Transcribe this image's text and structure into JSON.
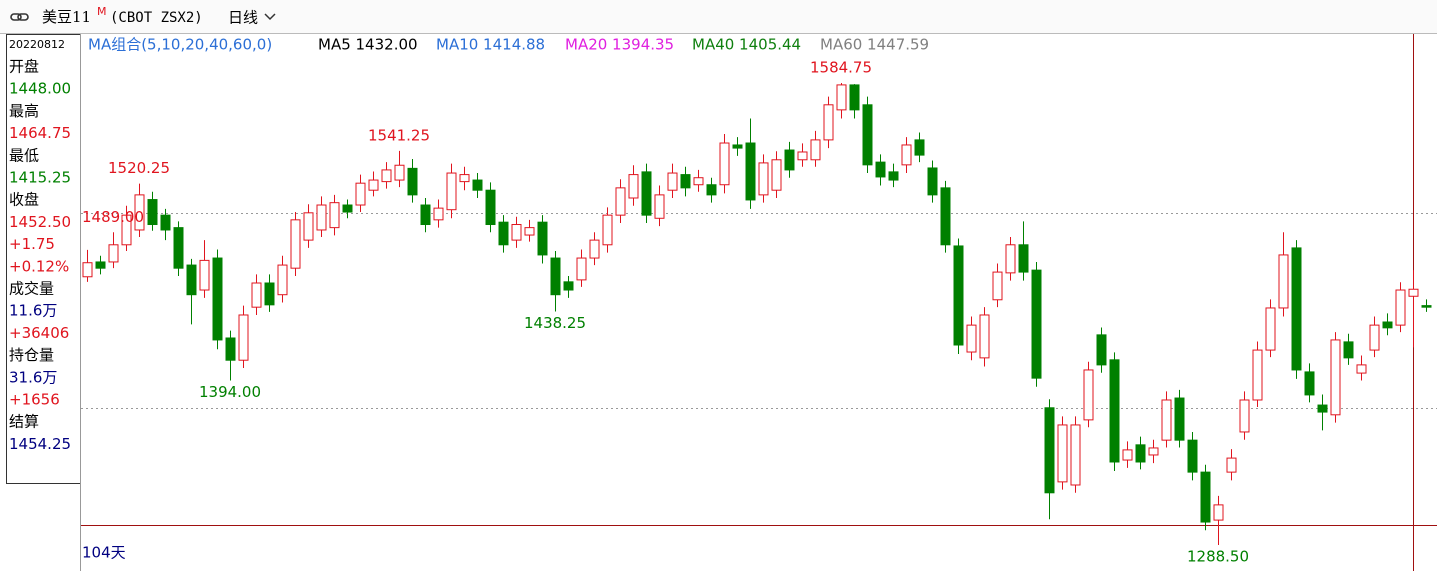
{
  "header": {
    "symbol": "美豆11",
    "flag": "M",
    "code": "(CBOT ZSX2)",
    "period": "日线"
  },
  "info_panel": [
    {
      "text": "20220812",
      "color": "#000000"
    },
    {
      "text": "开盘",
      "color": "#000000"
    },
    {
      "text": "1448.00",
      "color": "#008000"
    },
    {
      "text": "最高",
      "color": "#000000"
    },
    {
      "text": "1464.75",
      "color": "#e0141e"
    },
    {
      "text": "最低",
      "color": "#000000"
    },
    {
      "text": "1415.25",
      "color": "#008000"
    },
    {
      "text": "收盘",
      "color": "#000000"
    },
    {
      "text": "1452.50",
      "color": "#e0141e"
    },
    {
      "text": "+1.75",
      "color": "#e0141e"
    },
    {
      "text": "+0.12%",
      "color": "#e0141e"
    },
    {
      "text": "成交量",
      "color": "#000000"
    },
    {
      "text": "11.6万",
      "color": "#000080"
    },
    {
      "text": "+36406",
      "color": "#e0141e"
    },
    {
      "text": "持仓量",
      "color": "#000000"
    },
    {
      "text": "31.6万",
      "color": "#000080"
    },
    {
      "text": "+1656",
      "color": "#e0141e"
    },
    {
      "text": "结算",
      "color": "#000000"
    },
    {
      "text": "1454.25",
      "color": "#000080"
    }
  ],
  "chart_data": {
    "type": "candlestick",
    "ma_legend": [
      {
        "text": "MA组合(5,10,20,40,60,0)",
        "color": "#2c6fd6"
      },
      {
        "text": "MA5 1432.00",
        "color": "#000000"
      },
      {
        "text": "MA10 1414.88",
        "color": "#2c6fd6"
      },
      {
        "text": "MA20 1394.35",
        "color": "#e020e0"
      },
      {
        "text": "MA40 1405.44",
        "color": "#108010"
      },
      {
        "text": "MA60 1447.59",
        "color": "#808080"
      }
    ],
    "open": [
      1460.5,
      1470,
      1470,
      1481,
      1490.5,
      1510,
      1500,
      1492,
      1468,
      1452,
      1472.5,
      1421.25,
      1407,
      1441,
      1456.5,
      1449,
      1466,
      1484,
      1490.5,
      1492,
      1506.5,
      1506.5,
      1516,
      1521.5,
      1522.5,
      1530,
      1506.5,
      1497,
      1503.5,
      1521.5,
      1522.5,
      1516,
      1495.5,
      1484,
      1487.25,
      1495.5,
      1472.5,
      1457.25,
      1458.5,
      1472.5,
      1481,
      1500,
      1511,
      1527.75,
      1498,
      1516,
      1526,
      1519.5,
      1519.5,
      1519.5,
      1545,
      1546.25,
      1513,
      1516,
      1541.75,
      1535.5,
      1535.5,
      1548.25,
      1567.5,
      1583.5,
      1570.75,
      1534,
      1527.75,
      1532.25,
      1548.25,
      1530.25,
      1517.5,
      1480.25,
      1412.25,
      1408.5,
      1445.75,
      1463,
      1481,
      1464.75,
      1376.5,
      1329,
      1327,
      1368.75,
      1423.25,
      1407.25,
      1343,
      1352.75,
      1346.25,
      1355.75,
      1382.75,
      1355.75,
      1335.25,
      1304.5,
      1335.25,
      1361,
      1381.5,
      1413.5,
      1440.5,
      1479,
      1399.5,
      1378.25,
      1372,
      1418.75,
      1398.75,
      1413.5,
      1431.5,
      1429.5,
      1448,
      1442
    ],
    "high": [
      1477.75,
      1474,
      1489,
      1506,
      1520.25,
      1515,
      1504,
      1496,
      1472,
      1484,
      1478,
      1426,
      1442,
      1462,
      1462,
      1474,
      1502,
      1507,
      1512,
      1513,
      1510,
      1526,
      1528,
      1534,
      1541.25,
      1536,
      1511,
      1510,
      1533,
      1531,
      1527,
      1521,
      1500,
      1499,
      1497,
      1500,
      1477,
      1461,
      1478,
      1489,
      1505,
      1523,
      1532,
      1533,
      1519,
      1533,
      1531,
      1529,
      1524,
      1552,
      1550,
      1562,
      1539,
      1541,
      1547,
      1546,
      1554,
      1576,
      1584.75,
      1584,
      1576,
      1539,
      1533,
      1550,
      1553,
      1535,
      1522,
      1485,
      1435,
      1441,
      1469,
      1486,
      1496,
      1470,
      1382,
      1371,
      1371,
      1406,
      1428,
      1412,
      1355,
      1358,
      1356,
      1387,
      1388,
      1361,
      1340,
      1320,
      1350,
      1387,
      1419,
      1446,
      1489,
      1484,
      1405,
      1385,
      1425,
      1424,
      1410,
      1435,
      1437,
      1457,
      1464.75,
      1446
    ],
    "low": [
      1457.25,
      1462,
      1466,
      1477,
      1486,
      1490,
      1484,
      1461,
      1430,
      1447,
      1414,
      1394,
      1402,
      1436,
      1438,
      1444,
      1461,
      1479,
      1486,
      1487,
      1498,
      1502,
      1512,
      1517,
      1518,
      1508,
      1489,
      1492,
      1498,
      1516,
      1511,
      1489,
      1476,
      1479,
      1483,
      1469,
      1438.25,
      1447,
      1454,
      1468,
      1476,
      1495,
      1506,
      1495,
      1493,
      1511,
      1512,
      1515,
      1508,
      1514,
      1538,
      1504,
      1508,
      1511,
      1524,
      1531,
      1531,
      1543,
      1562,
      1562,
      1527,
      1519,
      1518,
      1527,
      1534,
      1508,
      1476,
      1411,
      1407,
      1403,
      1441,
      1458,
      1458,
      1390,
      1305,
      1324,
      1322,
      1364,
      1399,
      1336,
      1338,
      1337,
      1341,
      1351,
      1351,
      1330,
      1298,
      1288.5,
      1330,
      1356,
      1377,
      1409,
      1435,
      1395,
      1380,
      1362,
      1367,
      1404,
      1394,
      1409,
      1423,
      1425,
      1415.25,
      1438
    ],
    "close": [
      1469.5,
      1466,
      1481,
      1500,
      1513,
      1494,
      1490.5,
      1466,
      1449,
      1471,
      1420,
      1407,
      1436,
      1456.5,
      1442.5,
      1468,
      1497,
      1501.5,
      1506.5,
      1508,
      1502,
      1520.5,
      1522.5,
      1529,
      1532,
      1513,
      1494,
      1504.5,
      1527,
      1526,
      1516,
      1494,
      1481,
      1494,
      1492,
      1474.5,
      1449,
      1452,
      1472.5,
      1484,
      1500,
      1517.5,
      1526,
      1500,
      1513,
      1527,
      1517.5,
      1524,
      1513,
      1546.25,
      1543,
      1509.75,
      1533.5,
      1535.5,
      1529,
      1540.5,
      1548.25,
      1570.75,
      1583.5,
      1567.5,
      1532.25,
      1524.5,
      1522.5,
      1545,
      1538.5,
      1513,
      1481,
      1416.75,
      1429.5,
      1436,
      1463.5,
      1481,
      1463.5,
      1395.5,
      1322,
      1365.5,
      1365.5,
      1400.75,
      1404,
      1341.75,
      1349.5,
      1341.75,
      1350.75,
      1381.5,
      1355.75,
      1335.25,
      1303.25,
      1314.25,
      1344.25,
      1381.5,
      1413.5,
      1440.5,
      1474.5,
      1400.75,
      1384.75,
      1373.75,
      1420,
      1408.5,
      1404,
      1429.5,
      1427.75,
      1452,
      1452.5,
      1441
    ],
    "up_color": "#e0141e",
    "down_color": "#008000",
    "ylim": [
      1272.5,
      1615.5
    ],
    "hlines": [
      1501.25,
      1376.25
    ],
    "annotations": [
      {
        "label": "1520.25",
        "value": 1520.25,
        "color": "#e0141e"
      },
      {
        "label": "1541.25",
        "value": 1541.25,
        "color": "#e0141e"
      },
      {
        "label": "1584.75",
        "value": 1584.75,
        "color": "#e0141e"
      },
      {
        "label": "1489.00",
        "value": 1489,
        "color": "#e0141e"
      },
      {
        "label": "1394.00",
        "value": 1394,
        "color": "#008000"
      },
      {
        "label": "1438.25",
        "value": 1438.25,
        "color": "#008000"
      },
      {
        "label": "1288.50",
        "value": 1288.5,
        "color": "#008000"
      }
    ],
    "days_label": "104天"
  }
}
